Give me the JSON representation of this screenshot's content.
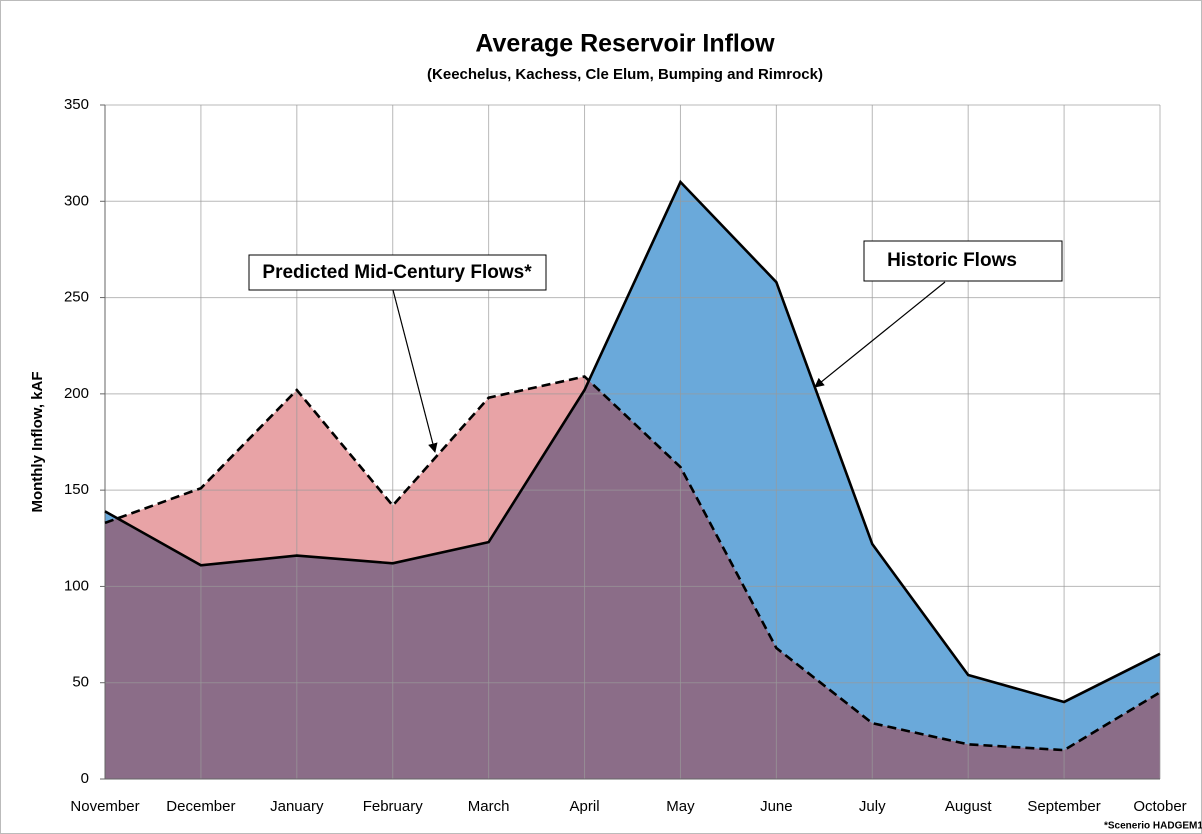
{
  "chart_data": {
    "type": "area",
    "title": "Average Reservoir Inflow",
    "subtitle": "(Keechelus, Kachess, Cle Elum, Bumping and Rimrock)",
    "y_label": "Monthly Inflow, kAF",
    "categories": [
      "November",
      "December",
      "January",
      "February",
      "March",
      "April",
      "May",
      "June",
      "July",
      "August",
      "September",
      "October"
    ],
    "series": [
      {
        "name": "Historic Flows",
        "color": "#6aa9da",
        "dashed": false,
        "values": [
          139,
          111,
          116,
          112,
          123,
          202,
          310,
          258,
          122,
          54,
          40,
          65
        ]
      },
      {
        "name": "Predicted Mid-Century Flows*",
        "color": "#e8a3a6",
        "dashed": true,
        "values": [
          133,
          151,
          202,
          142,
          198,
          209,
          162,
          68,
          29,
          18,
          15,
          45
        ]
      }
    ],
    "overlap_color": "#8b6d88",
    "ylim": [
      0,
      350
    ],
    "yticks": [
      0,
      50,
      100,
      150,
      200,
      250,
      300,
      350
    ],
    "grid": true,
    "note": "*Scenerio HADGEM1"
  }
}
